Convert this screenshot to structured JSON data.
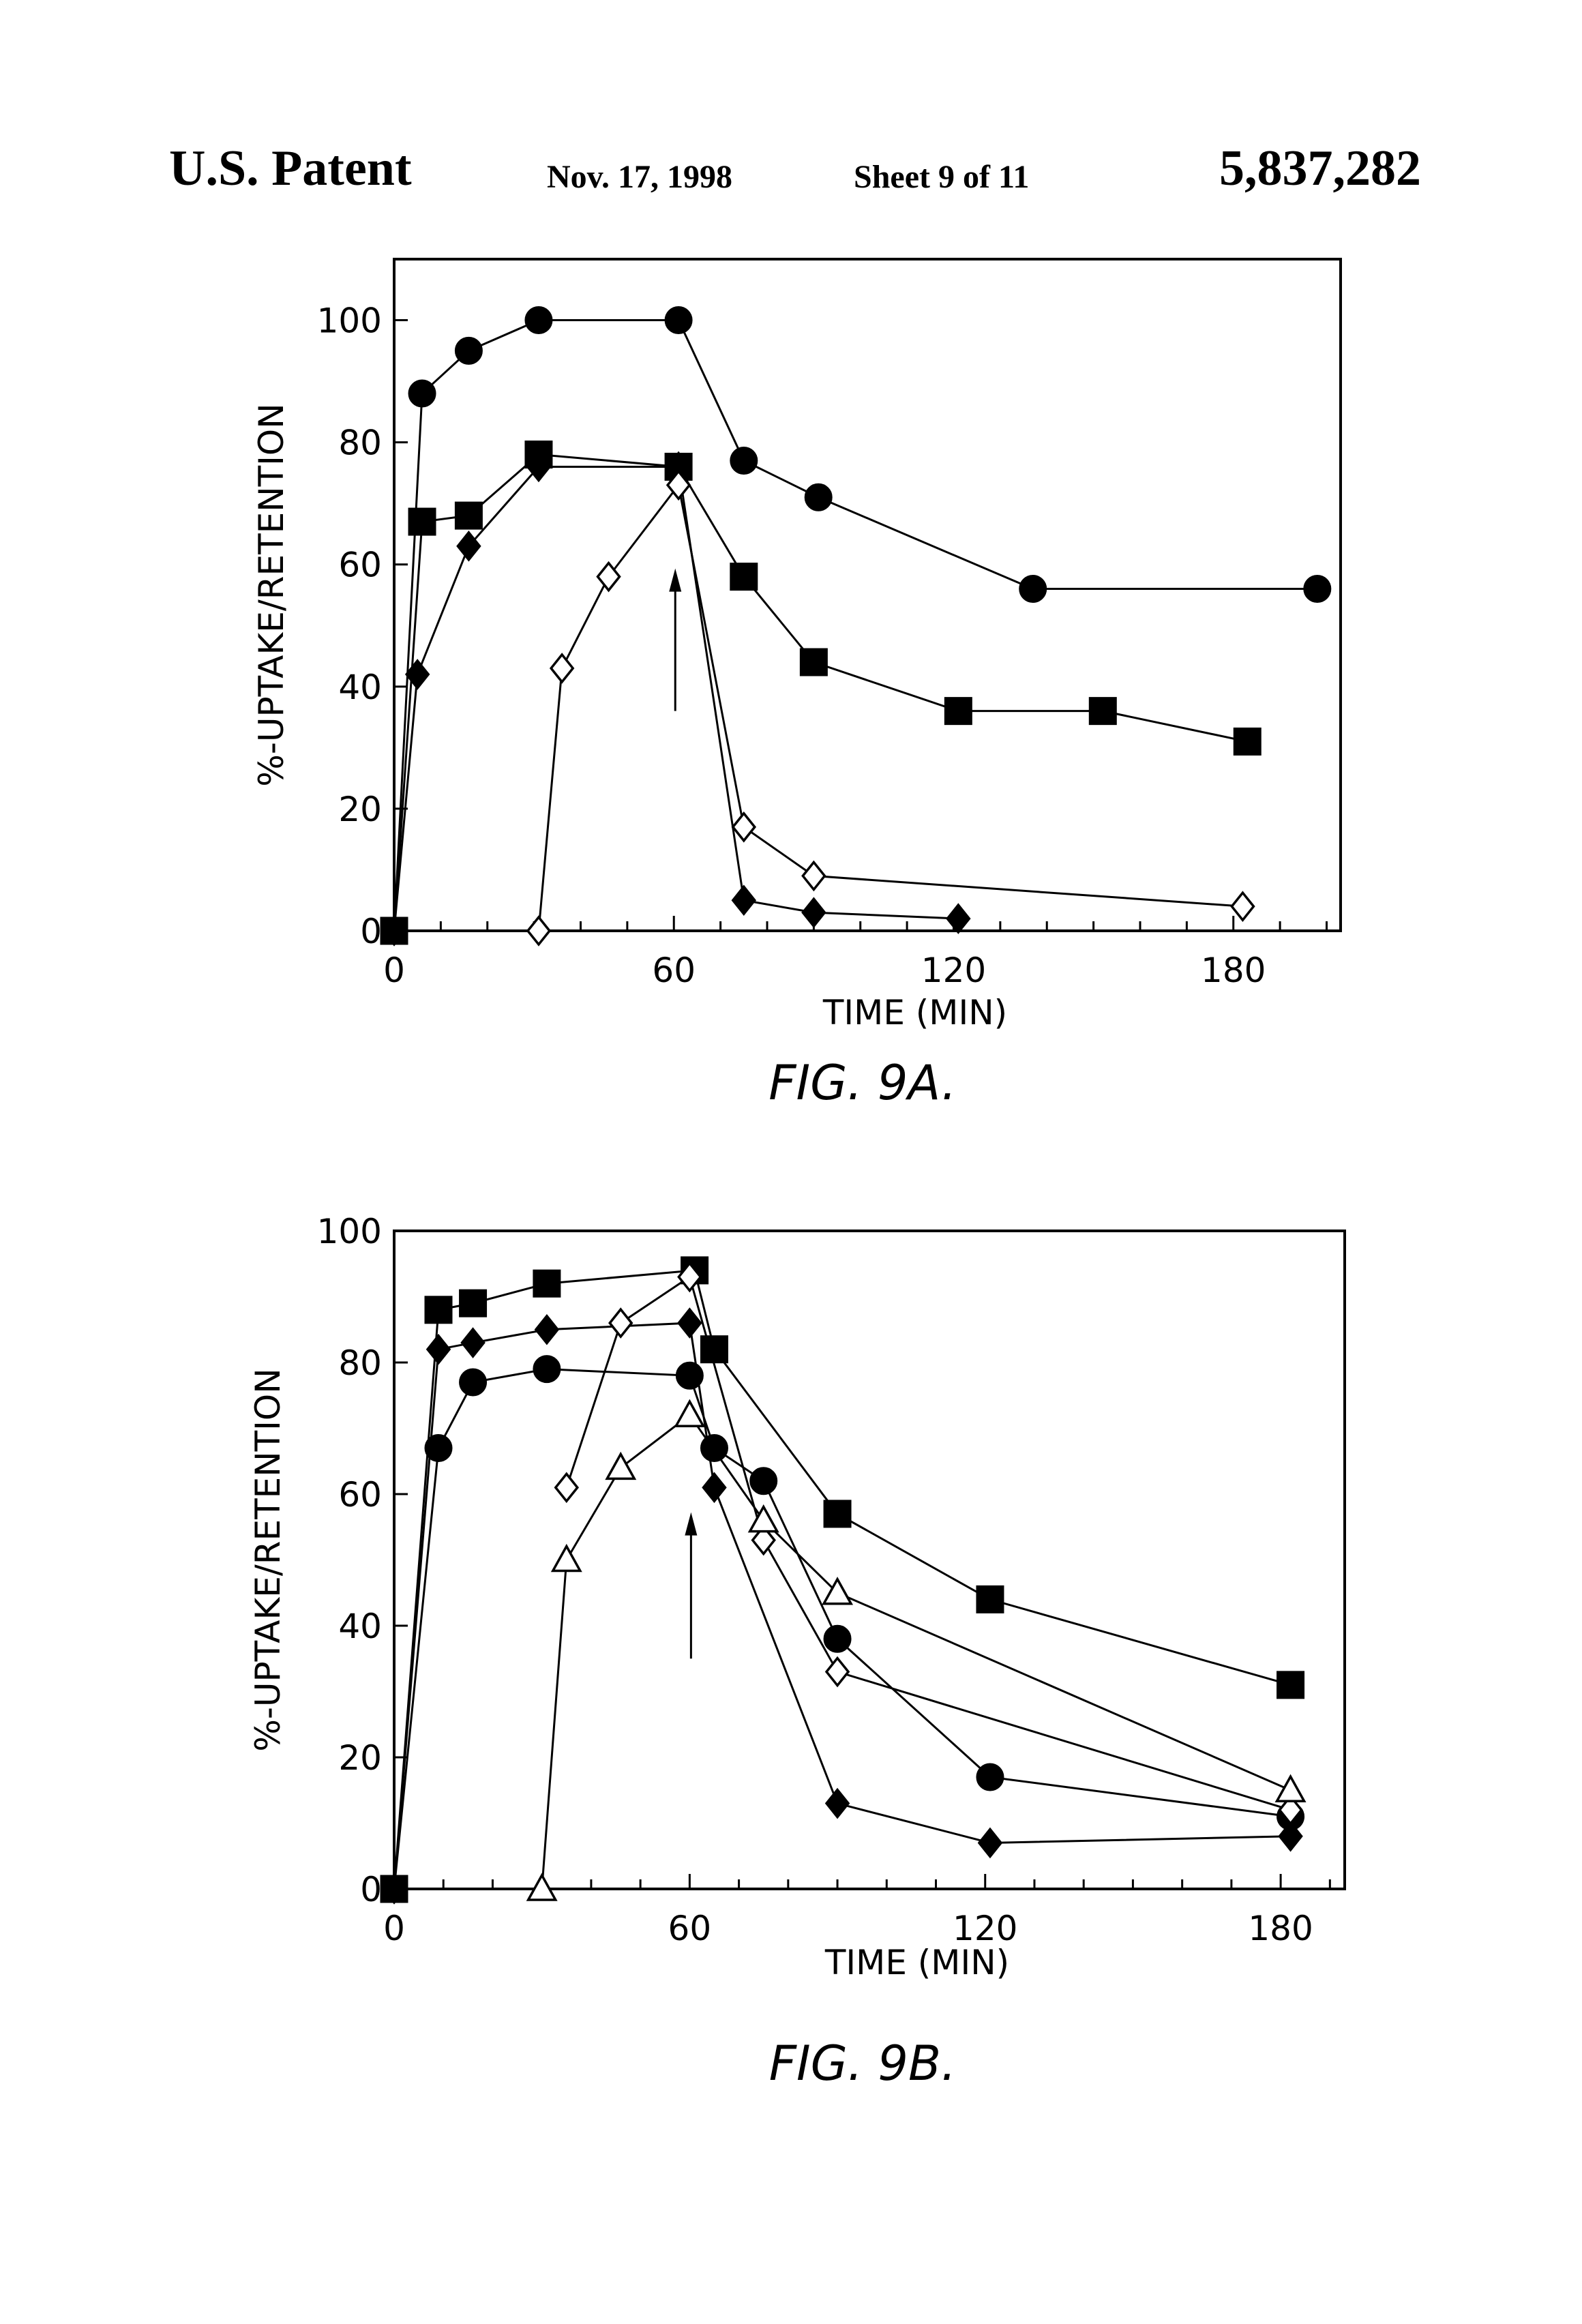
{
  "header": {
    "left": "U.S. Patent",
    "date": "Nov. 17, 1998",
    "sheet": "Sheet 9 of 11",
    "number": "5,837,282"
  },
  "chart_data": [
    {
      "type": "line",
      "caption": "FIG. 9A.",
      "xlabel": "TIME (MIN)",
      "ylabel": "%-UPTAKE/RETENTION",
      "xlim": [
        0,
        203
      ],
      "ylim": [
        0,
        110
      ],
      "xticks": [
        0,
        60,
        120,
        180
      ],
      "yticks": [
        0,
        20,
        40,
        60,
        80,
        100
      ],
      "xtick_labels": [
        "0",
        "60",
        "120",
        "180"
      ],
      "ytick_labels": [
        "0",
        "20",
        "40",
        "60",
        "80",
        "100"
      ],
      "arrow_x": 60,
      "grid": false,
      "series": [
        {
          "marker": "circle-filled",
          "x": [
            0,
            6,
            16,
            31,
            61,
            75,
            91,
            137,
            198
          ],
          "y": [
            0,
            88,
            95,
            100,
            100,
            77,
            71,
            56,
            56
          ]
        },
        {
          "marker": "square-filled",
          "x": [
            0,
            6,
            16,
            31,
            61,
            75,
            90,
            121,
            152,
            183
          ],
          "y": [
            0,
            67,
            68,
            78,
            76,
            58,
            44,
            36,
            36,
            31
          ]
        },
        {
          "marker": "diamond-filled",
          "x": [
            0,
            5,
            16,
            31,
            61,
            75,
            90,
            121
          ],
          "y": [
            0,
            42,
            63,
            76,
            76,
            5,
            3,
            2
          ]
        },
        {
          "marker": "diamond-open",
          "x": [
            31,
            36,
            46,
            61,
            75,
            90,
            182
          ],
          "y": [
            0,
            43,
            58,
            73,
            17,
            9,
            4
          ]
        }
      ]
    },
    {
      "type": "line",
      "caption": "FIG. 9B.",
      "xlabel": "TIME (MIN)",
      "ylabel": "%-UPTAKE/RETENTION",
      "xlim": [
        0,
        193
      ],
      "ylim": [
        0,
        100
      ],
      "xticks": [
        0,
        60,
        120,
        180
      ],
      "yticks": [
        0,
        20,
        40,
        60,
        80,
        100
      ],
      "xtick_labels": [
        "0",
        "60",
        "120",
        "180"
      ],
      "ytick_labels": [
        "0",
        "20",
        "40",
        "60",
        "80",
        "100"
      ],
      "arrow_x": 60,
      "grid": false,
      "series": [
        {
          "marker": "square-filled",
          "x": [
            0,
            9,
            16,
            31,
            61,
            65,
            90,
            121,
            182
          ],
          "y": [
            0,
            88,
            89,
            92,
            94,
            82,
            57,
            44,
            31
          ]
        },
        {
          "marker": "diamond-filled",
          "x": [
            0,
            9,
            16,
            31,
            60,
            65,
            90,
            121,
            182
          ],
          "y": [
            0,
            82,
            83,
            85,
            86,
            61,
            13,
            7,
            8
          ]
        },
        {
          "marker": "circle-filled",
          "x": [
            0,
            9,
            16,
            31,
            60,
            65,
            75,
            90,
            121,
            182
          ],
          "y": [
            0,
            67,
            77,
            79,
            78,
            67,
            62,
            38,
            17,
            11
          ]
        },
        {
          "marker": "diamond-open",
          "x": [
            35,
            46,
            60,
            75,
            90,
            182
          ],
          "y": [
            61,
            86,
            93,
            53,
            33,
            12
          ]
        },
        {
          "marker": "triangle-open",
          "x": [
            30,
            35,
            46,
            60,
            75,
            90,
            182
          ],
          "y": [
            0,
            50,
            64,
            72,
            56,
            45,
            15
          ]
        }
      ]
    }
  ]
}
